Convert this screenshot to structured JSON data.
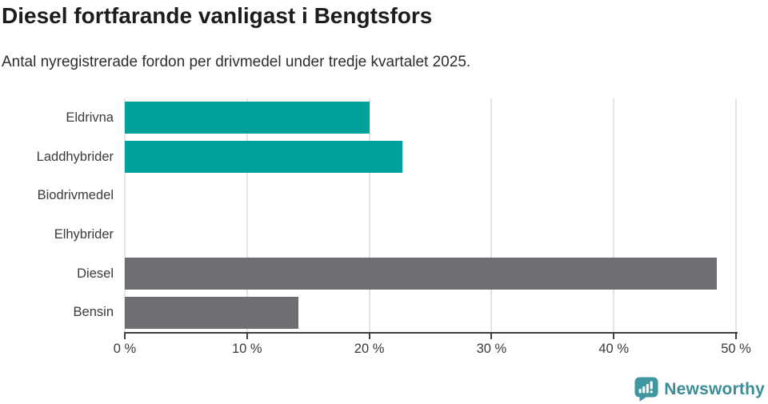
{
  "chart_data": {
    "type": "bar",
    "orientation": "horizontal",
    "title": "Diesel fortfarande vanligast i Bengtsfors",
    "subtitle": "Antal nyregistrerade fordon per drivmedel under tredje kvartalet 2025.",
    "categories": [
      "Eldrivna",
      "Laddhybrider",
      "Biodrivmedel",
      "Elhybrider",
      "Diesel",
      "Bensin"
    ],
    "values": [
      19.0,
      21.6,
      0,
      0,
      46.0,
      13.5
    ],
    "unit": "%",
    "xlim": [
      0,
      50
    ],
    "x_ticks": [
      0,
      10,
      20,
      30,
      40,
      50
    ],
    "x_tick_labels": [
      "0 %",
      "10 %",
      "20 %",
      "30 %",
      "40 %",
      "50 %"
    ],
    "bar_colors": [
      "#00a19a",
      "#00a19a",
      "#00a19a",
      "#00a19a",
      "#6e6e73",
      "#6e6e73"
    ],
    "grid": "vertical",
    "legend": "none"
  },
  "colors": {
    "teal_bar": "#00a19a",
    "gray_bar": "#6e6e73",
    "gridline": "#e4e4e4",
    "axis": "#3f3f3f",
    "title_text": "#1c1c1a",
    "body_text": "#3a3a3a",
    "logo_teal": "#3f969e"
  },
  "footer": {
    "brand": "Newsworthy"
  }
}
